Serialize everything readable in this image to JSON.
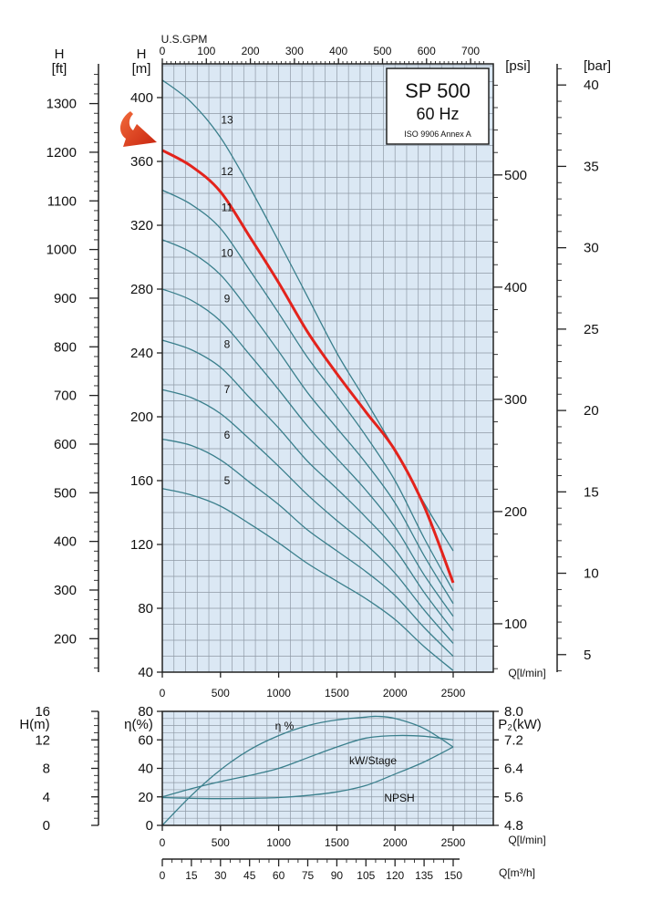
{
  "chart_data": [
    {
      "type": "line",
      "title": "SP 500",
      "subtitle": "60 Hz",
      "standard": "ISO 9906 Annex A",
      "xlabel": "Q[l/min]",
      "ylabel": "H [m]",
      "xlim": [
        0,
        2800
      ],
      "ylim": [
        40,
        420
      ],
      "grid": true,
      "x_ticks": [
        "0",
        "500",
        "1000",
        "1500",
        "2000",
        "2500"
      ],
      "y_ticks": [
        "40",
        "80",
        "120",
        "160",
        "200",
        "240",
        "280",
        "320",
        "360",
        "400"
      ],
      "secondary_axes": {
        "top": {
          "label": "U.S.GPM",
          "ticks": [
            "0",
            "100",
            "200",
            "300",
            "400",
            "500",
            "600",
            "700"
          ]
        },
        "left_outer": {
          "label": "H [ft]",
          "ticks": [
            "200",
            "300",
            "400",
            "500",
            "600",
            "700",
            "800",
            "900",
            "1000",
            "1100",
            "1200",
            "1300"
          ]
        },
        "right_inner": {
          "label": "[psi]",
          "ticks": [
            "100",
            "200",
            "300",
            "400",
            "500"
          ]
        },
        "right_outer": {
          "label": "[bar]",
          "ticks": [
            "5",
            "10",
            "15",
            "20",
            "25",
            "30",
            "35",
            "40"
          ]
        }
      },
      "highlight_series": "12",
      "series": [
        {
          "name": "13",
          "x": [
            0,
            250,
            500,
            750,
            1000,
            1250,
            1500,
            1750,
            2000,
            2250,
            2500
          ],
          "y": [
            411,
            397,
            375,
            344,
            310,
            275,
            240,
            210,
            179,
            146,
            116
          ]
        },
        {
          "name": "12",
          "x": [
            0,
            250,
            500,
            750,
            1000,
            1250,
            1500,
            1750,
            2000,
            2250,
            2500
          ],
          "y": [
            367,
            357,
            341,
            313,
            284,
            253,
            227,
            203,
            179,
            144,
            96
          ]
        },
        {
          "name": "11",
          "x": [
            0,
            250,
            500,
            750,
            1000,
            1250,
            1500,
            1750,
            2000,
            2250,
            2500
          ],
          "y": [
            342,
            333,
            318,
            292,
            265,
            237,
            213,
            188,
            160,
            124,
            91
          ]
        },
        {
          "name": "10",
          "x": [
            0,
            250,
            500,
            750,
            1000,
            1250,
            1500,
            1750,
            2000,
            2250,
            2500
          ],
          "y": [
            311,
            303,
            289,
            266,
            241,
            215,
            193,
            171,
            146,
            113,
            83
          ]
        },
        {
          "name": "9",
          "x": [
            0,
            250,
            500,
            750,
            1000,
            1250,
            1500,
            1750,
            2000,
            2250,
            2500
          ],
          "y": [
            280,
            273,
            260,
            239,
            217,
            194,
            174,
            154,
            131,
            101,
            75
          ]
        },
        {
          "name": "8",
          "x": [
            0,
            250,
            500,
            750,
            1000,
            1250,
            1500,
            1750,
            2000,
            2250,
            2500
          ],
          "y": [
            248,
            242,
            231,
            212,
            193,
            172,
            155,
            137,
            117,
            90,
            66
          ]
        },
        {
          "name": "7",
          "x": [
            0,
            250,
            500,
            750,
            1000,
            1250,
            1500,
            1750,
            2000,
            2250,
            2500
          ],
          "y": [
            217,
            212,
            202,
            186,
            169,
            151,
            135,
            120,
            102,
            79,
            58
          ]
        },
        {
          "name": "6",
          "x": [
            0,
            250,
            500,
            750,
            1000,
            1250,
            1500,
            1750,
            2000,
            2250,
            2500
          ],
          "y": [
            186,
            182,
            173,
            159,
            145,
            129,
            116,
            103,
            88,
            68,
            50
          ]
        },
        {
          "name": "5",
          "x": [
            0,
            250,
            500,
            750,
            1000,
            1250,
            1500,
            1750,
            2000,
            2250,
            2500
          ],
          "y": [
            155,
            151,
            144,
            133,
            121,
            108,
            97,
            86,
            73,
            56,
            41
          ]
        }
      ]
    },
    {
      "type": "line",
      "xlabel": "Q[l/min]",
      "xlim": [
        0,
        2800
      ],
      "grid": true,
      "x_ticks": [
        "0",
        "500",
        "1000",
        "1500",
        "2000",
        "2500"
      ],
      "left_axes": [
        {
          "label": "H(m)",
          "range": [
            0,
            16
          ],
          "ticks": [
            "0",
            "4",
            "8",
            "12",
            "16"
          ]
        },
        {
          "label": "η(%)",
          "range": [
            0,
            80
          ],
          "ticks": [
            "0",
            "20",
            "40",
            "60",
            "80"
          ]
        }
      ],
      "right_axis": {
        "label": "P₂(kW)",
        "range": [
          4.8,
          8.0
        ],
        "ticks": [
          "4.8",
          "5.6",
          "6.4",
          "7.2",
          "8.0"
        ]
      },
      "series": [
        {
          "name": "η %",
          "axis": "η(%)",
          "x": [
            0,
            250,
            500,
            750,
            1000,
            1250,
            1500,
            1750,
            1850,
            2000,
            2250,
            2500
          ],
          "y": [
            0,
            21,
            39,
            53,
            63,
            70,
            74,
            76,
            76.5,
            75,
            68,
            55
          ]
        },
        {
          "name": "kW/Stage",
          "axis": "P₂(kW)",
          "x": [
            0,
            250,
            500,
            750,
            1000,
            1250,
            1500,
            1750,
            2000,
            2250,
            2500
          ],
          "y": [
            5.6,
            5.83,
            6.03,
            6.2,
            6.4,
            6.7,
            7.0,
            7.25,
            7.32,
            7.3,
            7.2
          ]
        },
        {
          "name": "NPSH",
          "axis": "H(m)",
          "x": [
            0,
            250,
            500,
            750,
            1000,
            1250,
            1500,
            1750,
            2000,
            2250,
            2500
          ],
          "y": [
            3.9,
            3.8,
            3.75,
            3.8,
            3.9,
            4.2,
            4.7,
            5.6,
            7.2,
            8.9,
            11
          ]
        }
      ]
    }
  ],
  "flow_axis_m3h": {
    "label": "Q[m³/h]",
    "ticks": [
      "0",
      "15",
      "30",
      "45",
      "60",
      "75",
      "90",
      "105",
      "120",
      "135",
      "150"
    ]
  },
  "label_text": {
    "upper_left_outer": "H",
    "upper_left_outer_unit": "[ft]",
    "upper_left_inner": "H",
    "upper_left_inner_unit": "[m]",
    "lower_h": "H(m)",
    "lower_eta": "η(%)",
    "lower_p2": "P₂(kW)",
    "bottom_q": "Q[m³/h]"
  },
  "colors": {
    "grid_bg": "#dbe8f4",
    "curve": "#3a7f8c",
    "highlight": "#e3231c",
    "arrow": "#e3471f"
  }
}
